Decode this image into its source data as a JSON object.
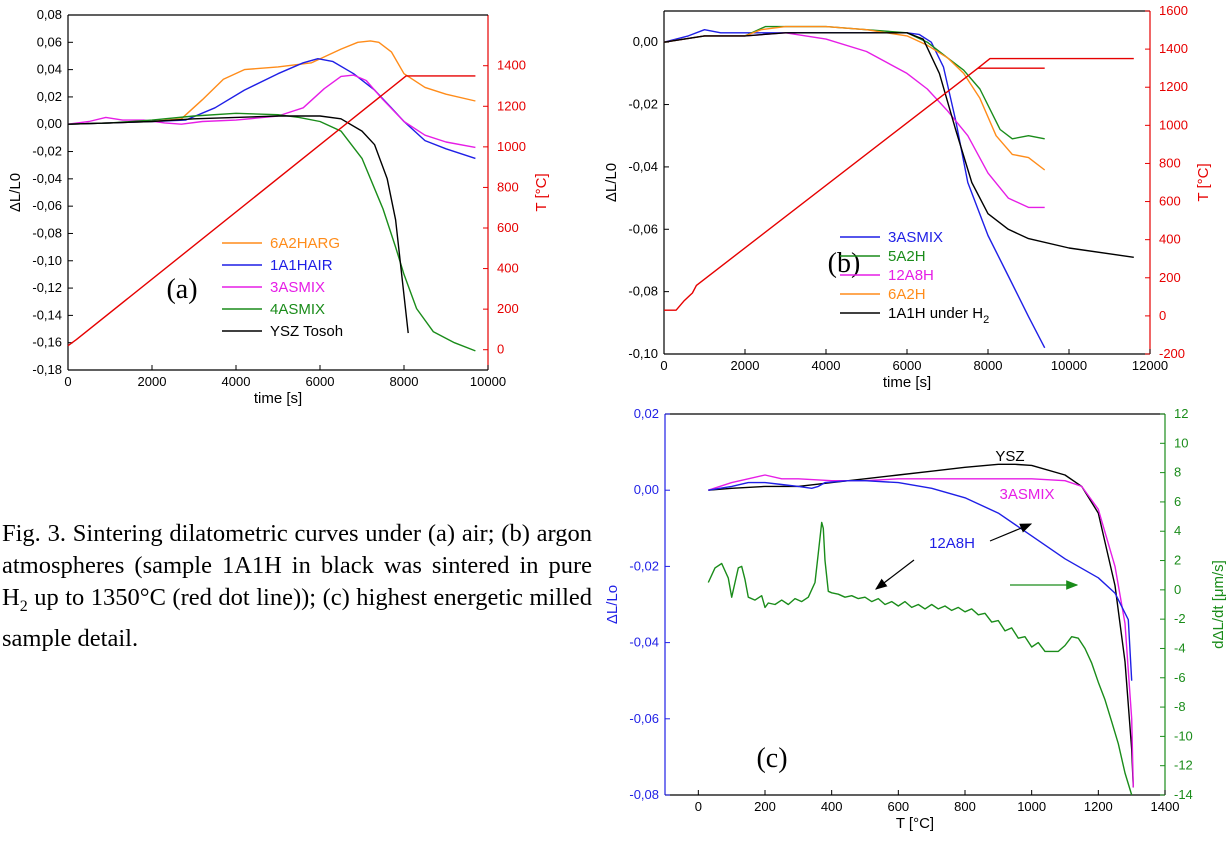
{
  "caption": {
    "text": "Fig. 3. Sintering dilatometric curves under (a) air; (b) argon atmospheres (sample 1A1H in black was sintered in pure H₂ up to 1350°C (red dot line)); (c) highest energetic milled sample detail."
  },
  "colors": {
    "orange": "#ff8c1a",
    "blue": "#1f1fe6",
    "magenta": "#e61ee6",
    "green": "#1a8c1a",
    "black": "#000000",
    "red": "#e60000"
  },
  "chart_data": [
    {
      "id": "a",
      "type": "line",
      "panel_label": "(a)",
      "xlabel": "time [s]",
      "ylabel_left": "ΔL/L0",
      "ylabel_right": "T [°C]",
      "xlim": [
        0,
        10000
      ],
      "ylim_left": [
        -0.18,
        0.08
      ],
      "ylim_right": [
        -100,
        1650
      ],
      "xticks": [
        "0",
        "2000",
        "4000",
        "6000",
        "8000",
        "10000"
      ],
      "yticks_left": [
        "0,08",
        "0,06",
        "0,04",
        "0,02",
        "0,00",
        "-0,02",
        "-0,04",
        "-0,06",
        "-0,08",
        "-0,10",
        "-0,12",
        "-0,14",
        "-0,16",
        "-0,18"
      ],
      "yticks_right": [
        "1400",
        "1200",
        "1000",
        "800",
        "600",
        "400",
        "200",
        "0"
      ],
      "legend": [
        "6A2HARG",
        "1A1HAIR",
        "3ASMIX",
        "4ASMIX",
        "YSZ Tosoh"
      ],
      "series": [
        {
          "name": "6A2HARG",
          "color": "#ff8c1a",
          "axis": "left",
          "x": [
            0,
            1000,
            2000,
            2700,
            3200,
            3700,
            4200,
            5000,
            5800,
            6500,
            6900,
            7200,
            7400,
            7700,
            8000,
            8500,
            9000,
            9700
          ],
          "y": [
            0,
            0.001,
            0.002,
            0.004,
            0.018,
            0.033,
            0.04,
            0.042,
            0.045,
            0.055,
            0.06,
            0.061,
            0.06,
            0.053,
            0.037,
            0.027,
            0.022,
            0.017
          ]
        },
        {
          "name": "1A1HAIR",
          "color": "#1f1fe6",
          "axis": "left",
          "x": [
            0,
            1000,
            2000,
            2800,
            3500,
            4200,
            5000,
            5600,
            5950,
            6300,
            6800,
            7300,
            7700,
            8000,
            8500,
            9000,
            9700
          ],
          "y": [
            0,
            0.001,
            0.002,
            0.003,
            0.012,
            0.025,
            0.037,
            0.045,
            0.048,
            0.046,
            0.037,
            0.025,
            0.012,
            0.002,
            -0.012,
            -0.018,
            -0.025
          ]
        },
        {
          "name": "3ASMIX",
          "color": "#e61ee6",
          "axis": "left",
          "x": [
            0,
            500,
            900,
            1300,
            1800,
            2300,
            2700,
            3200,
            4000,
            5000,
            5600,
            6100,
            6500,
            6800,
            7100,
            7500,
            8000,
            8500,
            9000,
            9700
          ],
          "y": [
            0,
            0.002,
            0.005,
            0.003,
            0.003,
            0.001,
            0,
            0.002,
            0.003,
            0.006,
            0.012,
            0.026,
            0.035,
            0.036,
            0.032,
            0.018,
            0.002,
            -0.008,
            -0.013,
            -0.017
          ]
        },
        {
          "name": "4ASMIX",
          "color": "#1a8c1a",
          "axis": "left",
          "x": [
            0,
            1000,
            2000,
            3000,
            4000,
            5000,
            5500,
            6000,
            6500,
            7000,
            7500,
            7800,
            8000,
            8300,
            8700,
            9200,
            9700
          ],
          "y": [
            0,
            0.001,
            0.003,
            0.006,
            0.008,
            0.007,
            0.005,
            0.002,
            -0.005,
            -0.025,
            -0.062,
            -0.09,
            -0.11,
            -0.135,
            -0.152,
            -0.16,
            -0.166
          ]
        },
        {
          "name": "YSZ Tosoh",
          "color": "#000000",
          "axis": "left",
          "x": [
            0,
            1000,
            2000,
            3000,
            4000,
            5000,
            5500,
            6000,
            6500,
            7000,
            7300,
            7600,
            7800,
            8100
          ],
          "y": [
            0,
            0.001,
            0.002,
            0.004,
            0.005,
            0.006,
            0.006,
            0.006,
            0.004,
            -0.005,
            -0.015,
            -0.04,
            -0.07,
            -0.153
          ]
        },
        {
          "name": "",
          "color": "#e60000",
          "axis": "right",
          "x": [
            0,
            200,
            8050,
            9700
          ],
          "y": [
            20,
            50,
            1350,
            1350
          ]
        }
      ]
    },
    {
      "id": "b",
      "type": "line",
      "panel_label": "(b)",
      "xlabel": "time [s]",
      "ylabel_left": "ΔL/L0",
      "ylabel_right": "T [°C]",
      "xlim": [
        0,
        12000
      ],
      "ylim_left": [
        -0.1,
        0.01
      ],
      "ylim_right": [
        -200,
        1600
      ],
      "xticks": [
        "0",
        "2000",
        "4000",
        "6000",
        "8000",
        "10000",
        "12000"
      ],
      "yticks_left": [
        "0,00",
        "-0,02",
        "-0,04",
        "-0,06",
        "-0,08",
        "-0,10"
      ],
      "yticks_right": [
        "1600",
        "1400",
        "1200",
        "1000",
        "800",
        "600",
        "400",
        "200",
        "0",
        "-200"
      ],
      "legend": [
        "3ASMIX",
        "5A2H",
        "12A8H",
        "6A2H",
        "1A1H under H2"
      ],
      "series": [
        {
          "name": "3ASMIX",
          "color": "#1f1fe6",
          "axis": "left",
          "x": [
            0,
            600,
            1000,
            1400,
            1800,
            2400,
            3000,
            4000,
            5000,
            6000,
            6300,
            6600,
            6900,
            7200,
            7500,
            8000,
            8500,
            9000,
            9400
          ],
          "y": [
            0,
            0.002,
            0.004,
            0.003,
            0.003,
            0.003,
            0.003,
            0.003,
            0.003,
            0.003,
            0.0025,
            0.0,
            -0.008,
            -0.025,
            -0.045,
            -0.062,
            -0.075,
            -0.088,
            -0.098
          ]
        },
        {
          "name": "5A2H",
          "color": "#1a8c1a",
          "axis": "left",
          "x": [
            0,
            1000,
            2000,
            2500,
            3000,
            4000,
            5000,
            6000,
            6500,
            7000,
            7400,
            7800,
            8300,
            8600,
            9000,
            9400
          ],
          "y": [
            0,
            0.002,
            0.002,
            0.005,
            0.005,
            0.005,
            0.004,
            0.003,
            0.0,
            -0.005,
            -0.009,
            -0.015,
            -0.028,
            -0.031,
            -0.03,
            -0.031
          ]
        },
        {
          "name": "12A8H",
          "color": "#e61ee6",
          "axis": "left",
          "x": [
            0,
            500,
            1000,
            1500,
            2000,
            3000,
            4000,
            5000,
            6000,
            6500,
            7000,
            7500,
            8000,
            8500,
            9000,
            9400
          ],
          "y": [
            0,
            0.001,
            0.002,
            0.002,
            0.002,
            0.003,
            0.001,
            -0.003,
            -0.01,
            -0.015,
            -0.022,
            -0.03,
            -0.042,
            -0.05,
            -0.053,
            -0.053
          ]
        },
        {
          "name": "6A2H",
          "color": "#ff8c1a",
          "axis": "left",
          "x": [
            0,
            1000,
            2000,
            2400,
            3000,
            4000,
            5000,
            6000,
            6500,
            7000,
            7400,
            7800,
            8200,
            8600,
            9000,
            9400
          ],
          "y": [
            0,
            0.002,
            0.002,
            0.004,
            0.005,
            0.005,
            0.004,
            0.002,
            -0.001,
            -0.005,
            -0.01,
            -0.018,
            -0.03,
            -0.036,
            -0.037,
            -0.041
          ]
        },
        {
          "name": "1A1H under H2",
          "color": "#000000",
          "axis": "left",
          "x": [
            0,
            1000,
            2000,
            3000,
            4000,
            5000,
            6000,
            6400,
            6800,
            7200,
            7600,
            8000,
            8500,
            9000,
            10000,
            11600
          ],
          "y": [
            0,
            0.002,
            0.002,
            0.003,
            0.003,
            0.003,
            0.003,
            0.001,
            -0.01,
            -0.028,
            -0.045,
            -0.055,
            -0.06,
            -0.063,
            -0.066,
            -0.069
          ]
        },
        {
          "name": "",
          "color": "#e60000",
          "axis": "right",
          "x": [
            0,
            300,
            500,
            700,
            800,
            7750,
            8050,
            11600
          ],
          "y": [
            30,
            30,
            80,
            120,
            160,
            1300,
            1350,
            1350
          ]
        },
        {
          "name": "",
          "color": "#e60000",
          "axis": "right",
          "x": [
            7750,
            9400
          ],
          "y": [
            1300,
            1300
          ]
        }
      ]
    },
    {
      "id": "c",
      "type": "line",
      "panel_label": "(c)",
      "xlabel": "T [°C]",
      "ylabel_left": "ΔL/Lo",
      "ylabel_right": "dΔL/dt [μm/s]",
      "xlim": [
        -100,
        1400
      ],
      "ylim_left": [
        -0.08,
        0.02
      ],
      "ylim_right": [
        -14,
        12
      ],
      "xticks": [
        "0",
        "200",
        "400",
        "600",
        "800",
        "1000",
        "1200",
        "1400"
      ],
      "yticks_left": [
        "0,02",
        "0,00",
        "-0,02",
        "-0,04",
        "-0,06",
        "-0,08"
      ],
      "yticks_right": [
        "12",
        "10",
        "8",
        "6",
        "4",
        "2",
        "0",
        "-2",
        "-4",
        "-6",
        "-8",
        "-10",
        "-12",
        "-14"
      ],
      "annotations": [
        "YSZ",
        "3ASMIX",
        "12A8H"
      ],
      "series": [
        {
          "name": "YSZ",
          "color": "#000000",
          "axis": "left",
          "x": [
            30,
            100,
            200,
            300,
            400,
            500,
            600,
            700,
            800,
            900,
            950,
            1000,
            1100,
            1150,
            1200,
            1250,
            1280,
            1300,
            1305
          ],
          "y": [
            0,
            0.0005,
            0.001,
            0.001,
            0.002,
            0.003,
            0.004,
            0.005,
            0.006,
            0.0068,
            0.0068,
            0.0065,
            0.004,
            0.001,
            -0.006,
            -0.025,
            -0.045,
            -0.068,
            -0.078
          ]
        },
        {
          "name": "3ASMIX",
          "color": "#e61ee6",
          "axis": "left",
          "x": [
            30,
            100,
            150,
            200,
            250,
            300,
            400,
            500,
            600,
            700,
            800,
            900,
            1000,
            1100,
            1150,
            1200,
            1250,
            1280,
            1300,
            1305
          ],
          "y": [
            0,
            0.002,
            0.003,
            0.004,
            0.003,
            0.003,
            0.0025,
            0.0025,
            0.003,
            0.003,
            0.003,
            0.003,
            0.003,
            0.0025,
            0.001,
            -0.005,
            -0.02,
            -0.035,
            -0.06,
            -0.078
          ]
        },
        {
          "name": "12A8H",
          "color": "#1f1fe6",
          "axis": "left",
          "x": [
            30,
            100,
            150,
            200,
            250,
            300,
            340,
            360,
            380,
            450,
            500,
            600,
            700,
            800,
            900,
            1000,
            1100,
            1200,
            1250,
            1290,
            1300
          ],
          "y": [
            0,
            0.001,
            0.002,
            0.002,
            0.0015,
            0.001,
            0.0005,
            0.001,
            0.002,
            0.0025,
            0.0025,
            0.002,
            0.0005,
            -0.002,
            -0.006,
            -0.012,
            -0.018,
            -0.023,
            -0.027,
            -0.034,
            -0.05
          ]
        },
        {
          "name": "",
          "color": "#1a8c1a",
          "axis": "right",
          "x": [
            30,
            50,
            70,
            90,
            100,
            110,
            120,
            130,
            140,
            150,
            170,
            190,
            200,
            210,
            230,
            250,
            270,
            290,
            310,
            330,
            350,
            360,
            370,
            375,
            380,
            390,
            400,
            420,
            440,
            460,
            480,
            500,
            520,
            540,
            560,
            580,
            600,
            620,
            640,
            660,
            680,
            700,
            720,
            740,
            760,
            780,
            800,
            820,
            840,
            860,
            880,
            900,
            920,
            940,
            960,
            980,
            1000,
            1020,
            1040,
            1060,
            1080,
            1100,
            1120,
            1140,
            1160,
            1180,
            1200,
            1220,
            1240,
            1260,
            1280,
            1300
          ],
          "y": [
            0.5,
            1.5,
            1.8,
            0.8,
            -0.5,
            0.5,
            1.5,
            1.6,
            0.7,
            -0.5,
            -0.7,
            -0.4,
            -1.2,
            -0.9,
            -1,
            -0.7,
            -1,
            -0.6,
            -0.8,
            -0.5,
            0.5,
            2.5,
            4.6,
            4.2,
            2,
            -0.1,
            -0.2,
            -0.3,
            -0.5,
            -0.4,
            -0.6,
            -0.5,
            -0.8,
            -0.6,
            -1,
            -0.8,
            -1.1,
            -0.8,
            -1.2,
            -1,
            -1.3,
            -1,
            -1.3,
            -1.1,
            -1.4,
            -1.2,
            -1.5,
            -1.3,
            -1.7,
            -1.6,
            -2.2,
            -2.1,
            -2.8,
            -2.6,
            -3.3,
            -3.2,
            -3.9,
            -3.6,
            -4.2,
            -4.2,
            -4.2,
            -3.8,
            -3.2,
            -3.3,
            -4,
            -5,
            -6.3,
            -7.5,
            -9,
            -10.5,
            -12.5,
            -14
          ]
        }
      ]
    }
  ]
}
